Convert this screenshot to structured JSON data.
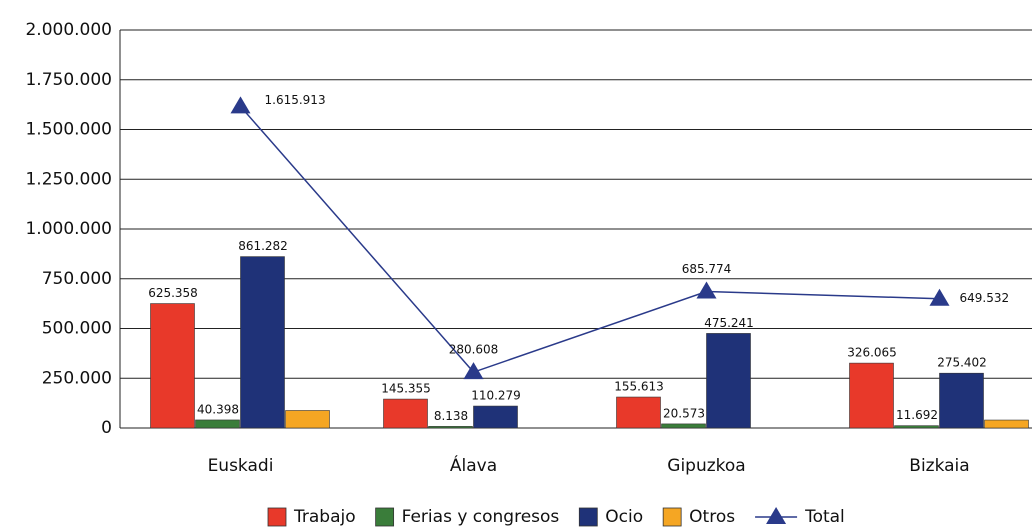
{
  "chart_data": {
    "type": "bar",
    "categories": [
      "Euskadi",
      "Álava",
      "Gipuzkoa",
      "Bizkaia"
    ],
    "series": [
      {
        "name": "Trabajo",
        "color": "#e8392a",
        "values": [
          625358,
          145355,
          155613,
          326065
        ],
        "value_labels": [
          "625.358",
          "145.355",
          "155.613",
          "326.065"
        ]
      },
      {
        "name": "Ferias y congresos",
        "color": "#3a7d3a",
        "values": [
          40398,
          8138,
          20573,
          11692
        ],
        "value_labels": [
          "40.398",
          "8.138",
          "20.573",
          "11.692"
        ]
      },
      {
        "name": "Ocio",
        "color": "#1f3278",
        "values": [
          861282,
          110279,
          475241,
          275402
        ],
        "value_labels": [
          "861.282",
          "110.279",
          "475.241",
          "275.402"
        ]
      },
      {
        "name": "Otros",
        "color": "#f5a623",
        "values": [
          88000,
          null,
          null,
          40000
        ]
      },
      {
        "name": "Total",
        "type": "line",
        "color": "#2a3a8a",
        "values": [
          1615913,
          280608,
          685774,
          649532
        ],
        "value_labels": [
          "1.615.913",
          "280.608",
          "685.774",
          "649.532"
        ]
      }
    ],
    "ylim": [
      0,
      2000000
    ],
    "yticks": [
      0,
      {
        "value": 250000,
        "label": "250.000"
      },
      {
        "value": 500000,
        "label": "500.000"
      },
      {
        "value": 750000,
        "label": "750.000"
      },
      {
        "value": 1000000,
        "label": "1.000.000"
      },
      {
        "value": 1250000,
        "label": "1.250.000"
      },
      {
        "value": 1500000,
        "label": "1.500.000"
      },
      {
        "value": 1750000,
        "label": "1.750.000"
      },
      {
        "value": 2000000,
        "label": "2.000.000"
      }
    ],
    "grid": true
  }
}
